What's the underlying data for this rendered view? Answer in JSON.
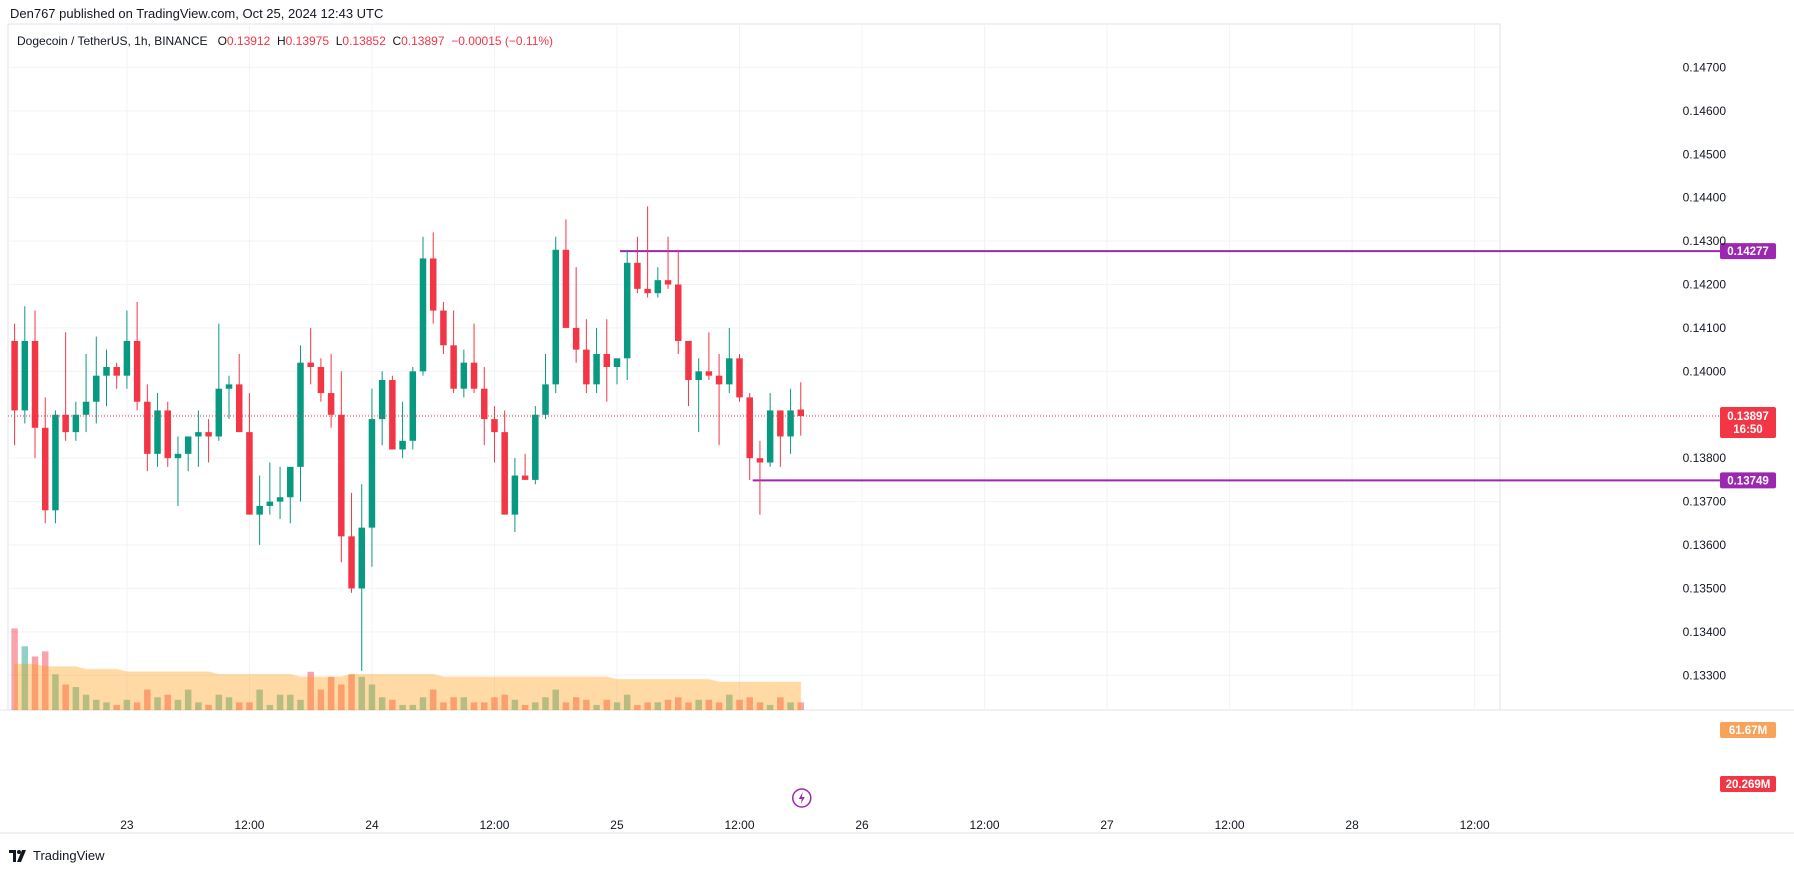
{
  "header": {
    "published": "Den767 published on TradingView.com, Oct 25, 2024 12:43 UTC"
  },
  "legend": {
    "symbol": "Dogecoin / TetherUS, 1h, BINANCE",
    "o_label": "O",
    "o": "0.13912",
    "h_label": "H",
    "h": "0.13975",
    "l_label": "L",
    "l": "0.13852",
    "c_label": "C",
    "c": "0.13897",
    "change": "−0.00015 (−0.11%)"
  },
  "footer": {
    "brand": "TradingView"
  },
  "colors": {
    "up": "#089981",
    "down": "#f23645",
    "level": "#9c27b0",
    "volume_ma": "#ff9800"
  },
  "chart_data": {
    "type": "candlestick",
    "timeframe": "1h",
    "y_axis": {
      "ticks": [
        0.147,
        0.146,
        0.145,
        0.144,
        0.143,
        0.142,
        0.141,
        0.14,
        0.139,
        0.138,
        0.137,
        0.136,
        0.135,
        0.134,
        0.133
      ],
      "tick_labels": [
        "0.14700",
        "0.14600",
        "0.14500",
        "0.14400",
        "0.14300",
        "0.14200",
        "0.14100",
        "0.14000",
        "",
        "0.13800",
        "0.13700",
        "0.13600",
        "0.13500",
        "0.13400",
        "0.13300"
      ],
      "range": [
        0.1322,
        0.148
      ]
    },
    "x_axis": {
      "tick_labels": [
        {
          "label": "23",
          "bar": 11
        },
        {
          "label": "12:00",
          "bar": 23
        },
        {
          "label": "24",
          "bar": 35
        },
        {
          "label": "12:00",
          "bar": 47
        },
        {
          "label": "25",
          "bar": 59
        },
        {
          "label": "12:00",
          "bar": 71
        },
        {
          "label": "26",
          "bar": 83
        },
        {
          "label": "12:00",
          "bar": 95
        },
        {
          "label": "27",
          "bar": 107
        },
        {
          "label": "12:00",
          "bar": 119
        },
        {
          "label": "28",
          "bar": 131
        },
        {
          "label": "12:00",
          "bar": 143
        }
      ]
    },
    "candles": [
      [
        0.1407,
        0.1411,
        0.1383,
        0.1391
      ],
      [
        0.1391,
        0.1415,
        0.1388,
        0.1407
      ],
      [
        0.1407,
        0.1414,
        0.138,
        0.1387
      ],
      [
        0.1387,
        0.1394,
        0.1365,
        0.1368
      ],
      [
        0.1368,
        0.1391,
        0.1365,
        0.139
      ],
      [
        0.139,
        0.1409,
        0.1384,
        0.1386
      ],
      [
        0.1386,
        0.1393,
        0.1384,
        0.139
      ],
      [
        0.139,
        0.1404,
        0.1386,
        0.1393
      ],
      [
        0.1393,
        0.1408,
        0.1388,
        0.1399
      ],
      [
        0.1399,
        0.1405,
        0.1392,
        0.1401
      ],
      [
        0.1401,
        0.1402,
        0.1396,
        0.1399
      ],
      [
        0.1399,
        0.1414,
        0.1396,
        0.1407
      ],
      [
        0.1407,
        0.1416,
        0.1391,
        0.1393
      ],
      [
        0.1393,
        0.1397,
        0.1377,
        0.1381
      ],
      [
        0.1381,
        0.1395,
        0.1378,
        0.1391
      ],
      [
        0.1391,
        0.1393,
        0.1378,
        0.138
      ],
      [
        0.138,
        0.1385,
        0.1369,
        0.1381
      ],
      [
        0.1381,
        0.1385,
        0.1377,
        0.1385
      ],
      [
        0.1385,
        0.1391,
        0.1378,
        0.1386
      ],
      [
        0.1386,
        0.1389,
        0.1379,
        0.1385
      ],
      [
        0.1385,
        0.1411,
        0.1384,
        0.1396
      ],
      [
        0.1396,
        0.1399,
        0.1389,
        0.1397
      ],
      [
        0.1397,
        0.1404,
        0.1386,
        0.1386
      ],
      [
        0.1386,
        0.1395,
        0.1367,
        0.1367
      ],
      [
        0.1367,
        0.1376,
        0.136,
        0.1369
      ],
      [
        0.1369,
        0.1379,
        0.1367,
        0.137
      ],
      [
        0.137,
        0.1378,
        0.1366,
        0.1371
      ],
      [
        0.1371,
        0.1378,
        0.1365,
        0.1378
      ],
      [
        0.1378,
        0.1406,
        0.137,
        0.1402
      ],
      [
        0.1402,
        0.141,
        0.1397,
        0.1401
      ],
      [
        0.1401,
        0.1403,
        0.1393,
        0.1395
      ],
      [
        0.1395,
        0.1404,
        0.1387,
        0.139
      ],
      [
        0.139,
        0.14,
        0.1356,
        0.1362
      ],
      [
        0.1362,
        0.1372,
        0.1349,
        0.135
      ],
      [
        0.135,
        0.1374,
        0.1331,
        0.1364
      ],
      [
        0.1364,
        0.1396,
        0.1355,
        0.1389
      ],
      [
        0.1389,
        0.14,
        0.1383,
        0.1398
      ],
      [
        0.1398,
        0.1399,
        0.1383,
        0.1382
      ],
      [
        0.1382,
        0.1393,
        0.138,
        0.1384
      ],
      [
        0.1384,
        0.1401,
        0.1382,
        0.14
      ],
      [
        0.14,
        0.1431,
        0.1399,
        0.1426
      ],
      [
        0.1426,
        0.1432,
        0.1411,
        0.1414
      ],
      [
        0.1414,
        0.1416,
        0.1404,
        0.1406
      ],
      [
        0.1406,
        0.1414,
        0.1395,
        0.1396
      ],
      [
        0.1396,
        0.1405,
        0.1394,
        0.1402
      ],
      [
        0.1402,
        0.1411,
        0.1395,
        0.1396
      ],
      [
        0.1396,
        0.1401,
        0.1383,
        0.1389
      ],
      [
        0.1389,
        0.1392,
        0.1379,
        0.1386
      ],
      [
        0.1386,
        0.1391,
        0.1367,
        0.1367
      ],
      [
        0.1367,
        0.138,
        0.1363,
        0.1376
      ],
      [
        0.1376,
        0.1381,
        0.1375,
        0.1375
      ],
      [
        0.1375,
        0.1392,
        0.1374,
        0.139
      ],
      [
        0.139,
        0.1404,
        0.1389,
        0.1397
      ],
      [
        0.1397,
        0.1431,
        0.1395,
        0.1428
      ],
      [
        0.1428,
        0.1435,
        0.141,
        0.141
      ],
      [
        0.141,
        0.1424,
        0.1402,
        0.1405
      ],
      [
        0.1405,
        0.1412,
        0.1395,
        0.1397
      ],
      [
        0.1397,
        0.141,
        0.1395,
        0.1404
      ],
      [
        0.1404,
        0.1412,
        0.1393,
        0.1401
      ],
      [
        0.1401,
        0.1403,
        0.1397,
        0.1403
      ],
      [
        0.1403,
        0.1428,
        0.1398,
        0.1425
      ],
      [
        0.1425,
        0.1431,
        0.1418,
        0.1419
      ],
      [
        0.1419,
        0.1438,
        0.1417,
        0.1418
      ],
      [
        0.1418,
        0.1424,
        0.1417,
        0.1421
      ],
      [
        0.1421,
        0.1431,
        0.1419,
        0.142
      ],
      [
        0.142,
        0.1428,
        0.1404,
        0.1407
      ],
      [
        0.1407,
        0.1407,
        0.1392,
        0.1398
      ],
      [
        0.1398,
        0.1403,
        0.1386,
        0.14
      ],
      [
        0.14,
        0.1409,
        0.1398,
        0.1399
      ],
      [
        0.1399,
        0.1404,
        0.1383,
        0.1397
      ],
      [
        0.1397,
        0.141,
        0.1395,
        0.1403
      ],
      [
        0.1403,
        0.1404,
        0.1393,
        0.1394
      ],
      [
        0.1394,
        0.1395,
        0.1375,
        0.138
      ],
      [
        0.138,
        0.1384,
        0.1367,
        0.1379
      ],
      [
        0.1379,
        0.1395,
        0.1378,
        0.1391
      ],
      [
        0.1391,
        0.1391,
        0.1378,
        0.1385
      ],
      [
        0.1385,
        0.1396,
        0.1381,
        0.1391
      ],
      [
        0.13912,
        0.13975,
        0.13852,
        0.13897
      ]
    ],
    "volume": [
      32,
      25,
      21,
      23,
      14,
      10,
      9,
      6,
      4,
      3,
      2,
      4,
      3,
      8,
      5,
      6,
      4,
      8,
      3,
      2,
      6,
      5,
      3,
      3,
      8,
      2,
      6,
      6,
      4,
      15,
      8,
      13,
      10,
      14,
      13,
      10,
      5,
      4,
      2,
      2,
      5,
      8,
      3,
      5,
      5,
      3,
      3,
      5,
      6,
      4,
      2,
      3,
      5,
      8,
      3,
      5,
      4,
      2,
      4,
      3,
      6,
      2,
      3,
      3,
      4,
      5,
      3,
      4,
      4,
      3,
      6,
      4,
      5,
      3,
      2,
      5,
      3,
      3
    ],
    "volume_ma": [
      18,
      18,
      18,
      17,
      17,
      17,
      17,
      16,
      16,
      16,
      16,
      15,
      15,
      15,
      15,
      15,
      15,
      15,
      15,
      15,
      14,
      14,
      14,
      14,
      14,
      14,
      14,
      14,
      13,
      13,
      13,
      13,
      13,
      14,
      14,
      14,
      14,
      14,
      14,
      14,
      14,
      14,
      13,
      13,
      13,
      13,
      13,
      13,
      13,
      13,
      13,
      13,
      13,
      13,
      13,
      13,
      13,
      13,
      13,
      12,
      12,
      12,
      12,
      12,
      12,
      12,
      12,
      12,
      12,
      11,
      11,
      11,
      11,
      11,
      11,
      11,
      11,
      11
    ],
    "levels": [
      {
        "value": 0.14277,
        "label": "0.14277",
        "start_bar": 59
      },
      {
        "value": 0.13749,
        "label": "0.13749",
        "start_bar": 72
      }
    ],
    "current_price": {
      "label": "0.13897",
      "countdown": "16:50"
    },
    "volume_labels": {
      "ma": "61.67M",
      "current": "20.269M"
    }
  }
}
